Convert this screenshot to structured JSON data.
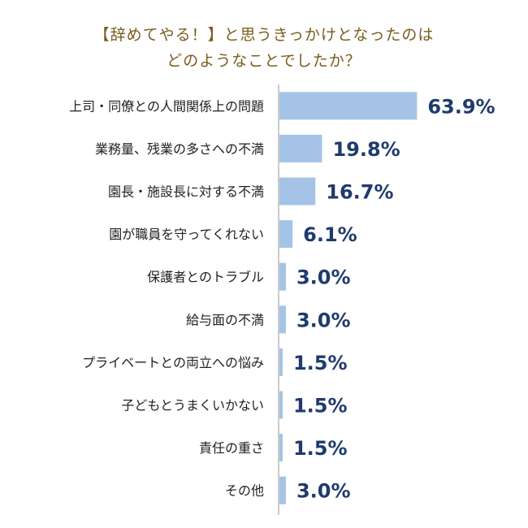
{
  "chart_data": {
    "type": "bar",
    "orientation": "horizontal",
    "title": "【辞めてやる！】と思うきっかけとなったのはどのようなことでしたか？",
    "title_lines": [
      "【辞めてやる！】と思うきっかけとなったのは",
      "どのようなことでしたか？"
    ],
    "categories": [
      "上司・同僚との人間関係上の問題",
      "業務量、残業の多さへの不満",
      "園長・施設長に対する不満",
      "園が職員を守ってくれない",
      "保護者とのトラブル",
      "給与面の不満",
      "プライベートとの両立への悩み",
      "子どもとうまくいかない",
      "責任の重さ",
      "その他"
    ],
    "values": [
      63.9,
      19.8,
      16.7,
      6.1,
      3.0,
      3.0,
      1.5,
      1.5,
      1.5,
      3.0
    ],
    "value_labels": [
      "63.9%",
      "19.8%",
      "16.7%",
      "6.1%",
      "3.0%",
      "3.0%",
      "1.5%",
      "1.5%",
      "1.5%",
      "3.0%"
    ],
    "unit": "%",
    "xlim": [
      0,
      70
    ],
    "grid": false,
    "legend": "none",
    "colors": {
      "bar": "#a4c3e6",
      "value_label": "#1f3b6e",
      "title": "#7a5c1e",
      "category_label": "#222222",
      "axis": "#999999"
    }
  }
}
